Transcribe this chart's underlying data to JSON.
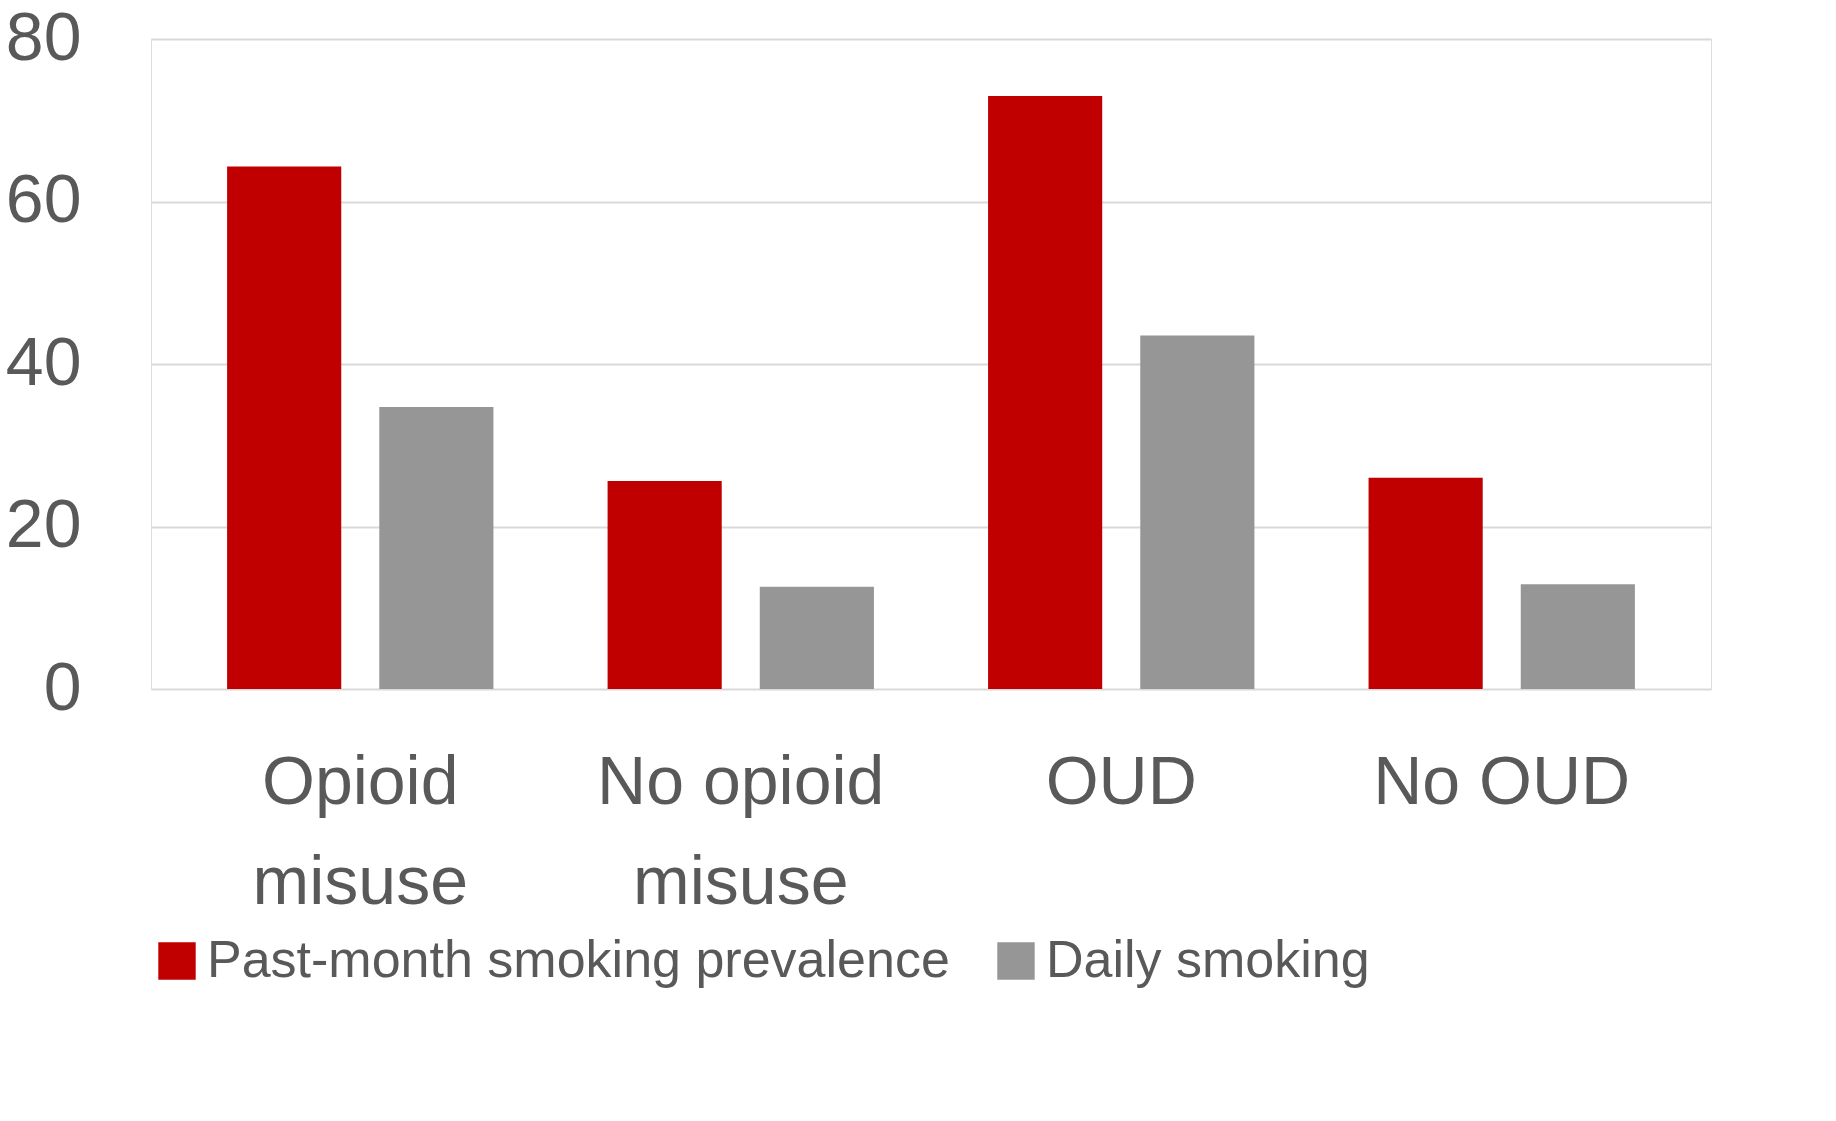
{
  "chart_data": {
    "type": "bar",
    "categories": [
      "Opioid misuse",
      "No opioid misuse",
      "OUD",
      "No OUD"
    ],
    "series": [
      {
        "name": "Past-month smoking prevalence",
        "color": "#c00000",
        "values": [
          64.3,
          25.6,
          73.0,
          26.0
        ]
      },
      {
        "name": "Daily smoking",
        "color": "#969696",
        "values": [
          34.7,
          12.6,
          43.5,
          12.9
        ]
      }
    ],
    "ylim": [
      0,
      80
    ],
    "yticks": [
      0,
      20,
      40,
      60,
      80
    ],
    "grid": "y",
    "legend": "bottom"
  }
}
